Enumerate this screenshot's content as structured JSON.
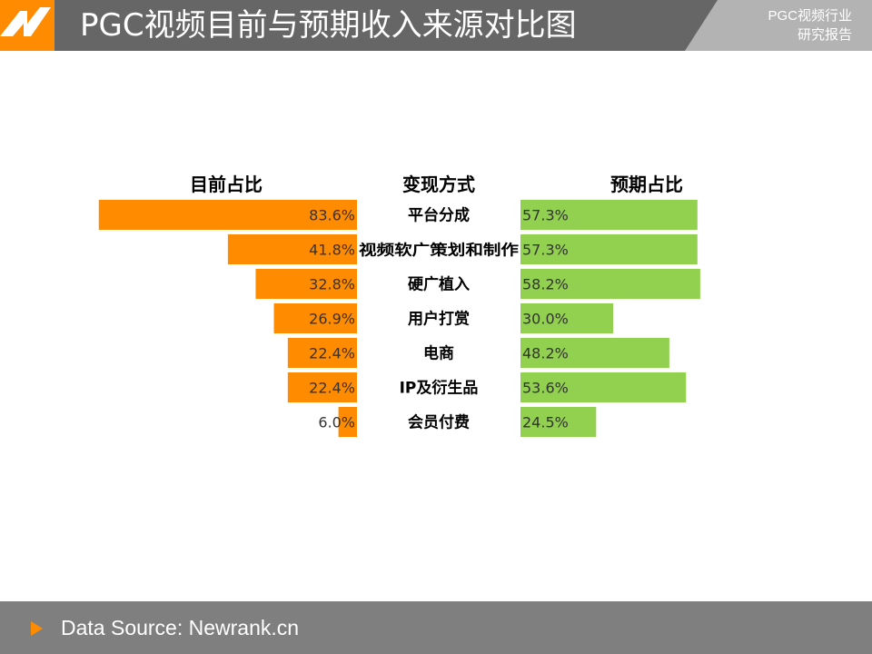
{
  "header": {
    "title": "PGC视频目前与预期收入来源对比图",
    "corner_line1": "PGC视频行业",
    "corner_line2": "研究报告",
    "logo": "n-logo-icon"
  },
  "footer": {
    "source": "Data Source: Newrank.cn",
    "icon": "triangle-right-icon"
  },
  "colors": {
    "current": "#ff8c00",
    "expected": "#92d050",
    "header_bg": "#666666",
    "footer_bg": "#7f7f7f"
  },
  "chart_data": {
    "type": "bar",
    "column_headers": {
      "current": "目前占比",
      "category": "变现方式",
      "expected": "预期占比"
    },
    "categories": [
      "平台分成",
      "视频软广策划和制作",
      "硬广植入",
      "用户打赏",
      "电商",
      "IP及衍生品",
      "会员付费"
    ],
    "series": [
      {
        "name": "目前占比",
        "values": [
          83.6,
          41.8,
          32.8,
          26.9,
          22.4,
          22.4,
          6.0
        ],
        "labels": [
          "83.6%",
          "41.8%",
          "32.8%",
          "26.9%",
          "22.4%",
          "22.4%",
          "6.0%"
        ],
        "direction": "left"
      },
      {
        "name": "预期占比",
        "values": [
          57.3,
          57.3,
          58.2,
          30.0,
          48.2,
          53.6,
          24.5
        ],
        "labels": [
          "57.3%",
          "57.3%",
          "58.2%",
          "30.0%",
          "48.2%",
          "53.6%",
          "24.5%"
        ],
        "direction": "right"
      }
    ]
  }
}
